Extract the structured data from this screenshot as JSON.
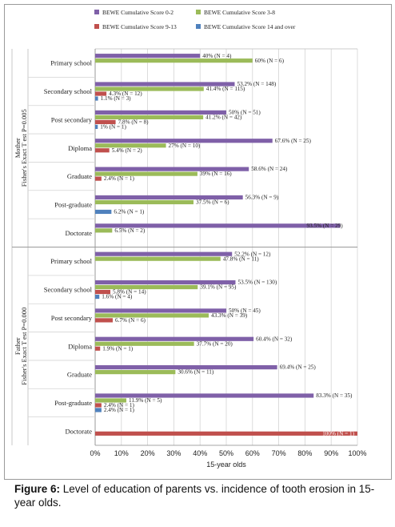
{
  "chart_data": {
    "type": "bar",
    "orientation": "horizontal",
    "legend_position": "top",
    "legend": [
      {
        "name": "BEWE Cumulative Score 0-2",
        "color": "#7f60a8"
      },
      {
        "name": "BEWE Cumulative Score 3-8",
        "color": "#9bbb59"
      },
      {
        "name": "BEWE Cumulative Score 9-13",
        "color": "#c0504d"
      },
      {
        "name": "BEWE Cumulative Score 14 and over",
        "color": "#4f81bd"
      }
    ],
    "xlabel": "15-year olds",
    "xlim": [
      0,
      100
    ],
    "xticks": [
      "0%",
      "10%",
      "20%",
      "30%",
      "40%",
      "50%",
      "60%",
      "70%",
      "80%",
      "90%",
      "100%"
    ],
    "grid": true,
    "groups": [
      {
        "label_line1": "Mother",
        "label_line2": "Fisher's Exact T est P=0.005",
        "categories": [
          {
            "label": "Primary school",
            "values": [
              40,
              60,
              null,
              null
            ],
            "labels": [
              "40% (N = 4)",
              "60% (N = 6)",
              "",
              ""
            ]
          },
          {
            "label": "Secondary school",
            "values": [
              53.2,
              41.4,
              4.3,
              1.1
            ],
            "labels": [
              "53.2% (N = 148)",
              "41.4% (N = 115)",
              "4.3% (N = 12)",
              "1.1% (N = 3)"
            ]
          },
          {
            "label": "Post secondary",
            "values": [
              50,
              41.2,
              7.8,
              1
            ],
            "labels": [
              "50% (N = 51)",
              "41.2% (N = 42)",
              "7.8% (N = 8)",
              "1% (N = 1)"
            ]
          },
          {
            "label": "Diploma",
            "values": [
              67.6,
              27,
              5.4,
              null
            ],
            "labels": [
              "67.6% (N = 25)",
              "27% (N = 10)",
              "5.4% (N = 2)",
              ""
            ]
          },
          {
            "label": "Graduate",
            "values": [
              58.6,
              39,
              2.4,
              null
            ],
            "labels": [
              "58.6% (N = 24)",
              "39% (N = 16)",
              "2.4% (N = 1)",
              ""
            ]
          },
          {
            "label": "Post-graduate",
            "values": [
              56.3,
              37.5,
              null,
              6.2
            ],
            "labels": [
              "56.3% (N = 9)",
              "37.5% (N = 6)",
              "",
              "6.2% (N = 1)"
            ]
          },
          {
            "label": "Doctorate",
            "values": [
              93.5,
              6.5,
              null,
              null
            ],
            "labels": [
              "93.5% (N = 29)",
              "6.5% (N = 2)",
              "",
              ""
            ]
          }
        ]
      },
      {
        "label_line1": "Father",
        "label_line2": "Fisher's Exact T est P=0.000",
        "categories": [
          {
            "label": "Primary school",
            "values": [
              52.2,
              47.8,
              null,
              null
            ],
            "labels": [
              "52.2% (N = 12)",
              "47.8% (N = 11)",
              "",
              ""
            ]
          },
          {
            "label": "Secondary school",
            "values": [
              53.5,
              39.1,
              5.8,
              1.6
            ],
            "labels": [
              "53.5% (N = 130)",
              "39.1% (N = 95)",
              "5.8% (N = 14)",
              "1.6% (N = 4)"
            ]
          },
          {
            "label": "Post secondary",
            "values": [
              50,
              43.3,
              6.7,
              null
            ],
            "labels": [
              "50% (N = 45)",
              "43.3% (N = 39)",
              "6.7% (N = 6)",
              ""
            ]
          },
          {
            "label": "Diploma",
            "values": [
              60.4,
              37.7,
              1.9,
              null
            ],
            "labels": [
              "60.4% (N = 32)",
              "37.7% (N = 20)",
              "1.9% (N = 1)",
              ""
            ]
          },
          {
            "label": "Graduate",
            "values": [
              69.4,
              30.6,
              null,
              null
            ],
            "labels": [
              "69.4% (N = 25)",
              "30.6% (N = 11)",
              "",
              ""
            ]
          },
          {
            "label": "Post-graduate",
            "values": [
              83.3,
              11.9,
              2.4,
              2.4
            ],
            "labels": [
              "83.3% (N = 35)",
              "11.9% (N = 5)",
              "2.4% (N = 1)",
              "2.4% (N = 1)"
            ]
          },
          {
            "label": "Doctorate",
            "values": [
              null,
              null,
              100,
              null
            ],
            "labels": [
              "",
              "",
              "100% (N = 1)",
              ""
            ]
          }
        ]
      }
    ]
  },
  "caption": {
    "figure_label": "Figure 6:",
    "text": " Level of education of parents vs. incidence of tooth erosion in 15-year olds."
  }
}
